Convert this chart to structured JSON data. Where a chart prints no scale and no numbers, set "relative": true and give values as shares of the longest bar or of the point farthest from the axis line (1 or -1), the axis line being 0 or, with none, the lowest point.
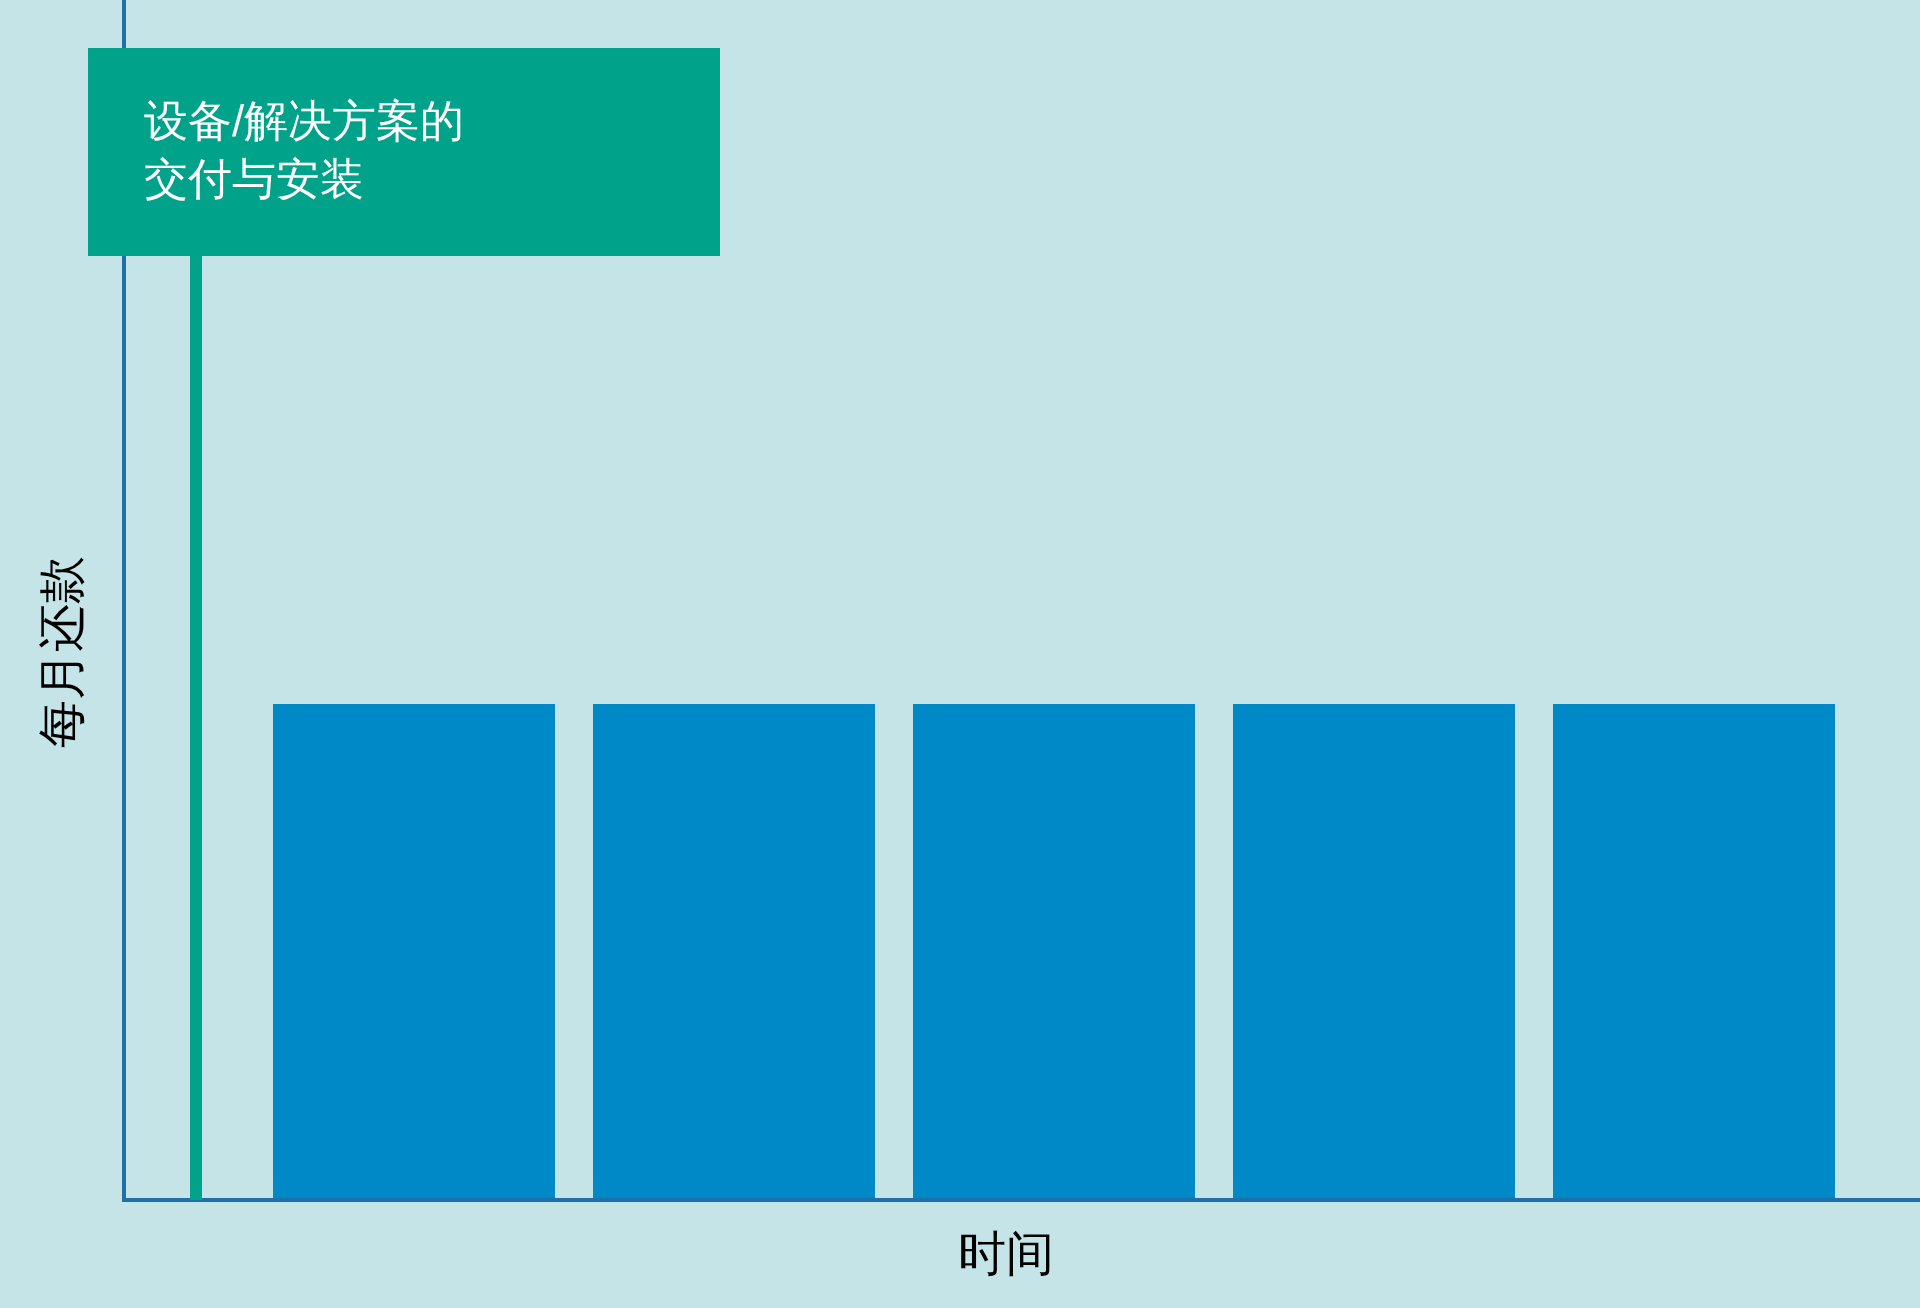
{
  "chart_data": {
    "type": "bar",
    "relative": true,
    "categories": [
      null,
      null,
      null,
      null,
      null
    ],
    "values": [
      1,
      1,
      1,
      1,
      1
    ],
    "color": "#0089c7",
    "xlabel": "时间",
    "ylabel": "每月还款",
    "annotations": [
      "设备/解决方案的交付与安装"
    ]
  }
}
